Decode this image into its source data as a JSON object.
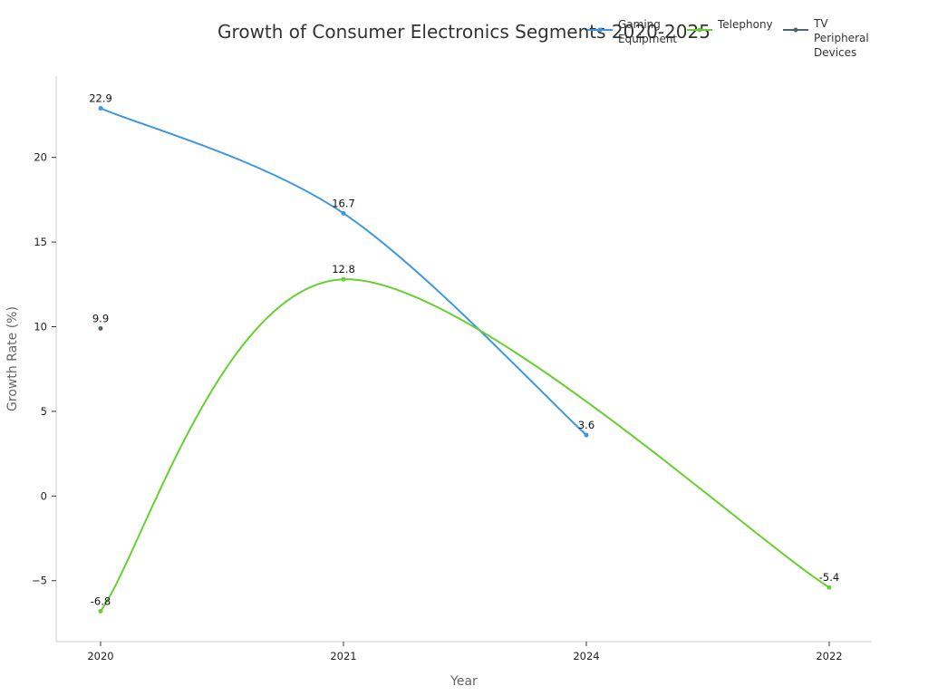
{
  "chart_data": {
    "type": "line",
    "title": "Growth of Consumer Electronics Segments 2020-2025",
    "xlabel": "Year",
    "ylabel": "Growth Rate (%)",
    "categories": [
      "2020",
      "2021",
      "2024",
      "2022"
    ],
    "yticks": [
      {
        "value": 20,
        "label": "20"
      },
      {
        "value": 15,
        "label": "15"
      },
      {
        "value": 10,
        "label": "10"
      },
      {
        "value": 5,
        "label": "5"
      },
      {
        "value": 0,
        "label": "0"
      },
      {
        "value": -5,
        "label": "−5"
      }
    ],
    "ylim": [
      -8.6,
      24.8
    ],
    "grid": false,
    "legend_position": "top-right",
    "series": [
      {
        "key": "gaming",
        "name": "Gaming Equipment",
        "legend_lines": [
          "Gaming",
          "Equipment"
        ],
        "color": "#3b97e3",
        "values": [
          22.9,
          16.7,
          3.6,
          null
        ],
        "labels": [
          "22.9",
          "16.7",
          "3.6",
          null
        ]
      },
      {
        "key": "telephony",
        "name": "Telephony",
        "legend_lines": [
          "Telephony"
        ],
        "color": "#66d02e",
        "values": [
          -6.8,
          12.8,
          null,
          -5.4
        ],
        "labels": [
          "-6.8",
          "12.8",
          null,
          "-5.4"
        ]
      },
      {
        "key": "tv",
        "name": "TV Peripheral Devices",
        "legend_lines": [
          "TV",
          "Peripheral",
          "Devices"
        ],
        "color": "#4d6470",
        "values": [
          9.9,
          null,
          null,
          null
        ],
        "labels": [
          "9.9",
          null,
          null,
          null
        ]
      }
    ]
  }
}
